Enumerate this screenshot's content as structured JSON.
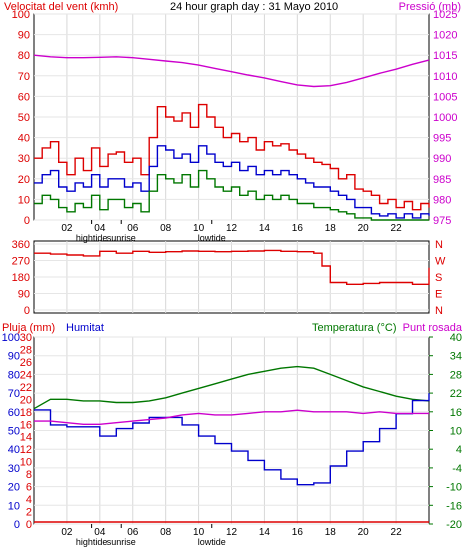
{
  "chart_data": [
    {
      "type": "line",
      "title": "24 hour graph day : 31 Mayo 2010",
      "ylabel_left": "Velocitat del vent (kmh)",
      "ylabel_right": "Pressió (mb)",
      "y_left_ticks": [
        "0",
        "10",
        "20",
        "30",
        "40",
        "50",
        "60",
        "70",
        "80",
        "90",
        "100"
      ],
      "y_left_range": [
        0,
        100
      ],
      "y_right_ticks": [
        "975",
        "980",
        "985",
        "990",
        "995",
        "1000",
        "1005",
        "1010",
        "1015",
        "1020",
        "1025"
      ],
      "y_right_range": [
        975,
        1025
      ],
      "x_ticks": [
        "02",
        "04",
        "06",
        "08",
        "10",
        "12",
        "14",
        "16",
        "18",
        "20",
        "22"
      ],
      "x_range": [
        0,
        24
      ],
      "markers": [
        {
          "label": "hightide",
          "x": 3.5
        },
        {
          "label": "sunrise",
          "x": 5.3
        },
        {
          "label": "lowtide",
          "x": 10.8
        }
      ],
      "series": [
        {
          "name": "",
          "color": "#dd0000",
          "axis": "left",
          "x": [
            0,
            0.5,
            1,
            1.5,
            2,
            2.5,
            3,
            3.5,
            4,
            4.5,
            5,
            5.5,
            6,
            6.5,
            7,
            7.5,
            8,
            8.5,
            9,
            9.5,
            10,
            10.5,
            11,
            11.5,
            12,
            12.5,
            13,
            13.5,
            14,
            14.5,
            15,
            15.5,
            16,
            16.5,
            17,
            17.5,
            18,
            18.5,
            19,
            19.5,
            20,
            20.5,
            21,
            21.5,
            22,
            22.5,
            23,
            23.5,
            24
          ],
          "y": [
            30,
            35,
            38,
            28,
            22,
            30,
            24,
            35,
            26,
            32,
            33,
            28,
            30,
            22,
            40,
            55,
            50,
            48,
            52,
            45,
            56,
            50,
            45,
            40,
            42,
            38,
            40,
            34,
            38,
            36,
            37,
            34,
            32,
            30,
            28,
            27,
            25,
            20,
            22,
            15,
            14,
            12,
            8,
            10,
            6,
            9,
            5,
            8,
            6
          ]
        },
        {
          "name": "",
          "color": "#0000cc",
          "axis": "left",
          "x": [
            0,
            0.5,
            1,
            1.5,
            2,
            2.5,
            3,
            3.5,
            4,
            4.5,
            5,
            5.5,
            6,
            6.5,
            7,
            7.5,
            8,
            8.5,
            9,
            9.5,
            10,
            10.5,
            11,
            11.5,
            12,
            12.5,
            13,
            13.5,
            14,
            14.5,
            15,
            15.5,
            16,
            16.5,
            17,
            17.5,
            18,
            18.5,
            19,
            19.5,
            20,
            20.5,
            21,
            21.5,
            22,
            22.5,
            23,
            23.5,
            24
          ],
          "y": [
            18,
            22,
            24,
            16,
            14,
            18,
            16,
            22,
            16,
            20,
            20,
            16,
            18,
            14,
            26,
            36,
            34,
            30,
            32,
            28,
            36,
            32,
            28,
            26,
            28,
            24,
            26,
            22,
            24,
            22,
            24,
            22,
            20,
            18,
            16,
            16,
            14,
            12,
            10,
            6,
            6,
            3,
            2,
            3,
            1,
            3,
            1,
            3,
            2
          ]
        },
        {
          "name": "",
          "color": "#007700",
          "axis": "left",
          "x": [
            0,
            0.5,
            1,
            1.5,
            2,
            2.5,
            3,
            3.5,
            4,
            4.5,
            5,
            5.5,
            6,
            6.5,
            7,
            7.5,
            8,
            8.5,
            9,
            9.5,
            10,
            10.5,
            11,
            11.5,
            12,
            12.5,
            13,
            13.5,
            14,
            14.5,
            15,
            15.5,
            16,
            16.5,
            17,
            17.5,
            18,
            18.5,
            19,
            19.5,
            20,
            20.5,
            21,
            21.5,
            22,
            22.5,
            23,
            23.5,
            24
          ],
          "y": [
            8,
            12,
            10,
            6,
            4,
            8,
            6,
            12,
            5,
            10,
            10,
            6,
            8,
            4,
            14,
            22,
            20,
            18,
            22,
            16,
            24,
            20,
            16,
            14,
            16,
            12,
            14,
            10,
            12,
            10,
            12,
            10,
            8,
            8,
            6,
            6,
            5,
            4,
            3,
            1,
            1,
            0,
            0,
            0,
            0,
            0,
            0,
            0,
            0
          ]
        },
        {
          "name": "",
          "color": "#cc00cc",
          "axis": "right",
          "x": [
            0,
            1,
            2,
            3,
            4,
            5,
            6,
            7,
            8,
            9,
            10,
            11,
            12,
            13,
            14,
            15,
            16,
            17,
            18,
            19,
            20,
            21,
            22,
            23,
            24
          ],
          "y": [
            1015,
            1014.6,
            1014.4,
            1014.4,
            1014.5,
            1014.6,
            1014.4,
            1014,
            1013.6,
            1013.2,
            1012.6,
            1011.8,
            1011,
            1010.2,
            1009.5,
            1008.6,
            1007.8,
            1007.4,
            1007.6,
            1008.4,
            1009.5,
            1010.6,
            1011.6,
            1012.8,
            1013.8
          ]
        }
      ]
    },
    {
      "type": "line",
      "title": "",
      "y_left_ticks": [
        "360",
        "270",
        "180",
        "90",
        "0"
      ],
      "y_left_range": [
        0,
        360
      ],
      "y_right_ticks": [
        "N",
        "W",
        "S",
        "E",
        "N"
      ],
      "x_range": [
        0,
        24
      ],
      "series": [
        {
          "name": "",
          "color": "#dd0000",
          "axis": "left",
          "x": [
            0,
            1,
            2,
            3,
            4,
            5,
            6,
            7,
            8,
            9,
            10,
            11,
            12,
            13,
            14,
            15,
            16,
            17,
            17.5,
            18,
            19,
            20,
            21,
            22,
            23,
            24
          ],
          "y": [
            310,
            305,
            300,
            295,
            320,
            310,
            320,
            315,
            318,
            322,
            320,
            318,
            320,
            322,
            325,
            320,
            318,
            310,
            240,
            150,
            140,
            145,
            150,
            150,
            140,
            230
          ]
        }
      ]
    },
    {
      "type": "line",
      "title": "",
      "ylabel_left_1": "Pluja (mm)",
      "ylabel_left_2": "Humitat",
      "ylabel_right_1": "Temperatura (°C)",
      "ylabel_right_2": "Punt rosada",
      "y_rain_ticks": [
        "0",
        "2",
        "4",
        "6",
        "8",
        "10",
        "12",
        "14",
        "16",
        "18",
        "20",
        "22",
        "24",
        "26",
        "28",
        "30"
      ],
      "y_rain_range": [
        0,
        30
      ],
      "y_hum_ticks": [
        "0",
        "10",
        "20",
        "30",
        "40",
        "50",
        "60",
        "70",
        "80",
        "90",
        "100"
      ],
      "y_hum_range": [
        0,
        100
      ],
      "y_temp_ticks": [
        "-20",
        "-16",
        "-10",
        "-4",
        "4",
        "10",
        "16",
        "22",
        "28",
        "34",
        "40"
      ],
      "y_temp_range": [
        -20,
        40
      ],
      "x_ticks": [
        "02",
        "04",
        "06",
        "08",
        "10",
        "12",
        "14",
        "16",
        "18",
        "20",
        "22"
      ],
      "x_range": [
        0,
        24
      ],
      "markers": [
        {
          "label": "hightide",
          "x": 3.5
        },
        {
          "label": "sunrise",
          "x": 5.3
        },
        {
          "label": "lowtide",
          "x": 10.8
        }
      ],
      "series": [
        {
          "name": "Temperatura (°C)",
          "color": "#007700",
          "axis": "temp",
          "x": [
            0,
            1,
            2,
            3,
            4,
            5,
            6,
            7,
            8,
            9,
            10,
            11,
            12,
            13,
            14,
            15,
            16,
            17,
            18,
            19,
            20,
            21,
            22,
            23,
            24
          ],
          "y": [
            17,
            20,
            20,
            19.5,
            19.5,
            19,
            19,
            19.5,
            20.5,
            22,
            23.5,
            25,
            26.5,
            28,
            29,
            30,
            30.5,
            30,
            28,
            26,
            24,
            22.5,
            21,
            20,
            19.5
          ]
        },
        {
          "name": "Humitat",
          "color": "#0000cc",
          "axis": "hum",
          "x": [
            0,
            1,
            2,
            3,
            4,
            5,
            6,
            7,
            8,
            9,
            10,
            11,
            12,
            13,
            14,
            15,
            16,
            17,
            18,
            19,
            20,
            21,
            22,
            23,
            24
          ],
          "y": [
            61,
            53,
            52,
            52,
            47,
            51,
            54,
            57,
            57,
            53,
            47,
            43,
            39,
            34,
            29,
            24,
            21,
            22,
            31,
            39,
            44,
            51,
            59,
            66,
            70
          ]
        },
        {
          "name": "Punt rosada",
          "color": "#cc00cc",
          "axis": "temp",
          "x": [
            0,
            1,
            2,
            3,
            4,
            5,
            6,
            7,
            8,
            9,
            10,
            11,
            12,
            13,
            14,
            15,
            16,
            17,
            18,
            19,
            20,
            21,
            22,
            23,
            24
          ],
          "y": [
            13,
            13,
            12.5,
            12,
            12,
            12.5,
            13,
            13.5,
            14,
            15,
            15.5,
            15,
            15,
            15.5,
            16,
            16,
            16.5,
            16,
            16,
            16,
            15.5,
            16,
            15.5,
            15.5,
            15.5
          ]
        },
        {
          "name": "Pluja (mm)",
          "color": "#dd0000",
          "axis": "rain",
          "x": [
            0,
            24
          ],
          "y": [
            0,
            0
          ]
        }
      ]
    }
  ]
}
